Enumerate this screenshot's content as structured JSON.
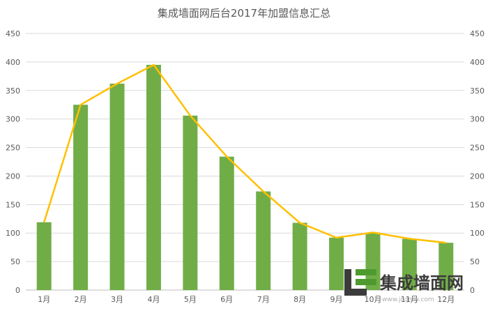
{
  "chart_data": {
    "type": "bar",
    "title": "集成墙面网后台2017年加盟信息汇总",
    "categories": [
      "1月",
      "2月",
      "3月",
      "4月",
      "5月",
      "6月",
      "7月",
      "8月",
      "9月",
      "10月",
      "11月",
      "12月"
    ],
    "series": [
      {
        "type": "bar",
        "values": [
          119,
          325,
          362,
          395,
          306,
          234,
          173,
          118,
          92,
          101,
          90,
          83
        ],
        "color": "#70ad47"
      },
      {
        "type": "line",
        "values": [
          119,
          325,
          362,
          395,
          306,
          234,
          173,
          118,
          92,
          101,
          90,
          83
        ],
        "color": "#ffc000"
      }
    ],
    "ylim": [
      0,
      450
    ],
    "yticks": [
      0,
      50,
      100,
      150,
      200,
      250,
      300,
      350,
      400,
      450
    ],
    "secondary_ylim": [
      0,
      450
    ],
    "grid": true,
    "legend": "none"
  },
  "watermark": {
    "text": "集成墙面网",
    "url_text": "www.jcqmw.com"
  }
}
